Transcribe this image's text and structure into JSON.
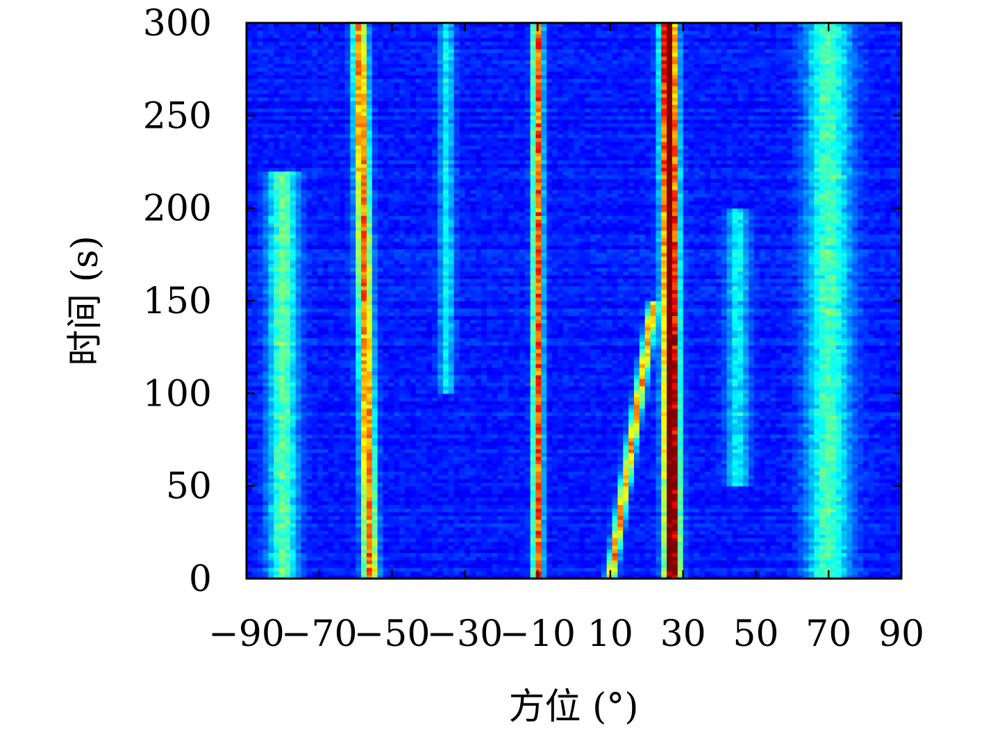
{
  "chart_data": {
    "type": "heatmap",
    "title": "",
    "xlabel": "方位 (°)",
    "ylabel": "时间 (s)",
    "xlim": [
      -90,
      90
    ],
    "ylim": [
      0,
      300
    ],
    "x_ticks": [
      -90,
      -70,
      -50,
      -30,
      -10,
      10,
      30,
      50,
      70,
      90
    ],
    "y_ticks": [
      0,
      50,
      100,
      150,
      200,
      250,
      300
    ],
    "x_tick_labels": [
      "−90",
      "−70",
      "−50",
      "−30",
      "−10",
      "10",
      "30",
      "50",
      "70",
      "90"
    ],
    "y_tick_labels": [
      "0",
      "50",
      "100",
      "150",
      "200",
      "250",
      "300"
    ],
    "colormap": "jet",
    "background_color": "#1f3fe0",
    "tracks": [
      {
        "azimuth_start": 27,
        "azimuth_end": 26,
        "t_start": 0,
        "t_end": 300,
        "intensity": 1.0,
        "width_deg": 2.2
      },
      {
        "azimuth_start": -56,
        "azimuth_end": -59,
        "t_start": 0,
        "t_end": 300,
        "intensity": 0.62,
        "width_deg": 2.0
      },
      {
        "azimuth_start": -10,
        "azimuth_end": -10,
        "t_start": 0,
        "t_end": 300,
        "intensity": 0.66,
        "width_deg": 1.4
      },
      {
        "azimuth_start": 10,
        "azimuth_end": 22,
        "t_start": 0,
        "t_end": 150,
        "intensity": 0.58,
        "width_deg": 1.4
      },
      {
        "azimuth_start": -80,
        "azimuth_end": -80,
        "t_start": 0,
        "t_end": 220,
        "intensity": 0.32,
        "width_deg": 4.0
      },
      {
        "azimuth_start": 70,
        "azimuth_end": 70,
        "t_start": 0,
        "t_end": 300,
        "intensity": 0.3,
        "width_deg": 6.0
      },
      {
        "azimuth_start": 45,
        "azimuth_end": 45,
        "t_start": 50,
        "t_end": 200,
        "intensity": 0.22,
        "width_deg": 3.0
      },
      {
        "azimuth_start": -35,
        "azimuth_end": -35,
        "t_start": 100,
        "t_end": 300,
        "intensity": 0.22,
        "width_deg": 2.0
      }
    ]
  }
}
